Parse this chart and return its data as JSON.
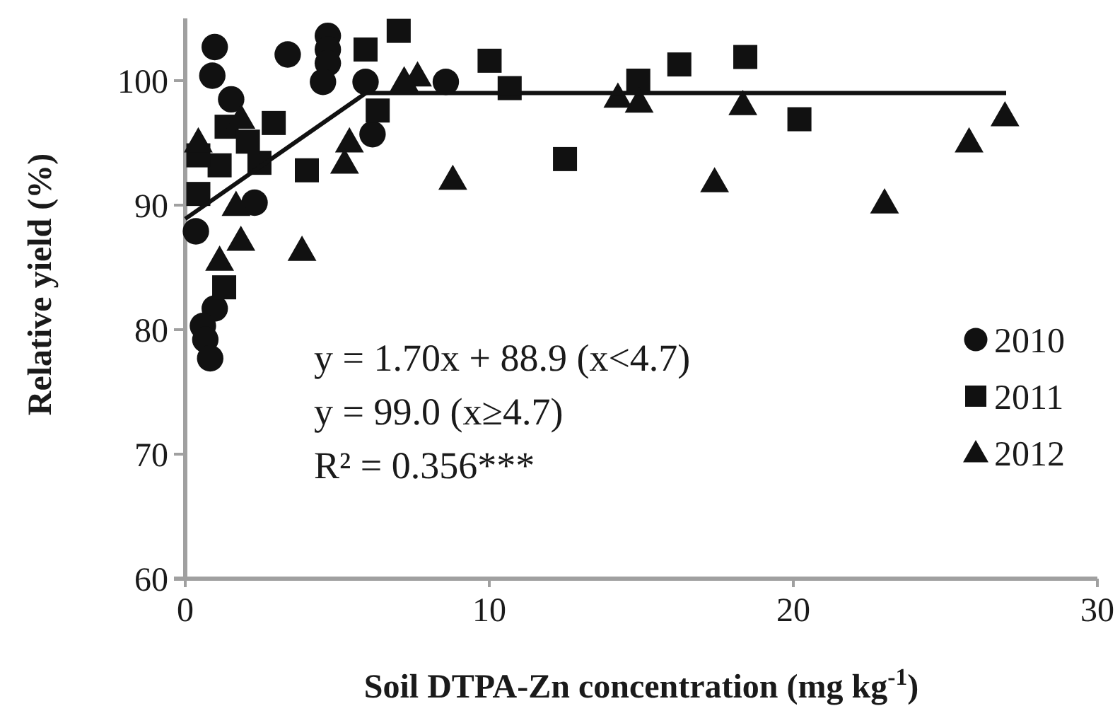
{
  "chart_data": {
    "type": "scatter",
    "xlabel": "Soil DTPA-Zn concentration (mg kg$^{-1}$)",
    "ylabel": "Relative yield (%)",
    "xlim": [
      0,
      30
    ],
    "xticks": [
      0,
      10,
      20,
      30
    ],
    "ylim": [
      60,
      105
    ],
    "yticks": [
      60,
      70,
      80,
      90,
      100
    ],
    "grid": false,
    "legend": "right",
    "annotations": [
      "y = 1.70x + 88.9 (x<4.7)",
      "y = 99.0 (x≥4.7)",
      "R² = 0.356***"
    ],
    "series": [
      {
        "name": "2010",
        "color": "#111111",
        "marker": "circle",
        "x": [
          0.97,
          0.89,
          1.51,
          3.37,
          4.69,
          4.69,
          4.69,
          4.53,
          5.93,
          6.16,
          2.28,
          0.35,
          0.97,
          0.58,
          0.66,
          0.82,
          8.57
        ],
        "values": [
          102.7,
          100.4,
          98.5,
          102.1,
          103.6,
          102.5,
          101.4,
          99.9,
          99.9,
          95.7,
          90.2,
          87.9,
          81.7,
          80.3,
          79.2,
          77.7,
          99.9
        ]
      },
      {
        "name": "2011",
        "color": "#111111",
        "marker": "square",
        "x": [
          7.02,
          5.93,
          6.33,
          2.91,
          1.36,
          2.44,
          2.06,
          4.0,
          1.13,
          0.43,
          0.43,
          1.28,
          10.01,
          10.67,
          12.49,
          14.9,
          16.25,
          18.42,
          20.2
        ],
        "values": [
          104.0,
          102.5,
          97.6,
          96.6,
          96.3,
          93.4,
          95.1,
          92.8,
          93.2,
          94.0,
          90.9,
          83.4,
          101.6,
          99.4,
          93.7,
          100.0,
          101.3,
          101.9,
          96.9
        ]
      },
      {
        "name": "2012",
        "color": "#111111",
        "marker": "triangle",
        "x": [
          0.43,
          1.83,
          5.4,
          5.24,
          1.67,
          1.83,
          1.13,
          3.84,
          7.64,
          7.2,
          8.8,
          14.23,
          14.93,
          17.41,
          18.34,
          23.0,
          25.78,
          26.96
        ],
        "values": [
          95.1,
          97.0,
          95.1,
          93.4,
          90.0,
          87.2,
          85.6,
          86.4,
          100.4,
          100.0,
          92.1,
          98.7,
          98.3,
          91.9,
          98.1,
          90.2,
          95.1,
          97.2
        ]
      },
      {
        "type": "line",
        "color": "#111111",
        "marker": "none",
        "line_style": "solid",
        "x": [
          0,
          5.94,
          27
        ],
        "values": [
          88.9,
          99.0,
          99.0
        ]
      }
    ]
  }
}
